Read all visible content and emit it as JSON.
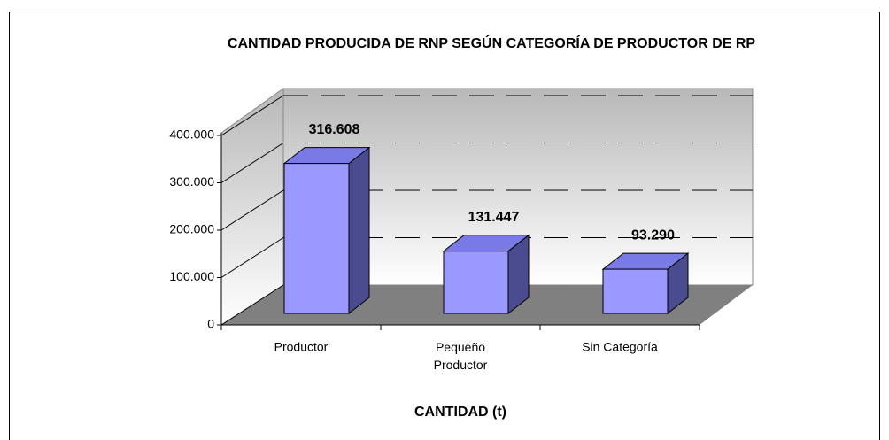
{
  "chart_data": {
    "type": "bar",
    "title": "CANTIDAD PRODUCIDA DE RNP SEGÚN CATEGORÍA DE PRODUCTOR DE RP",
    "x_label": "CANTIDAD (t)",
    "categories": [
      "Productor",
      "Pequeño Productor",
      "Sin Categoría"
    ],
    "values": [
      316608,
      131447,
      93290
    ],
    "value_labels": [
      "316.608",
      "131.447",
      "93.290"
    ],
    "color": "#9999ff",
    "ylim": [
      0,
      400000
    ],
    "yticks": [
      0,
      {
        "value": 100000,
        "label": "100.000"
      },
      {
        "value": 200000,
        "label": "200.000"
      },
      {
        "value": 300000,
        "label": "300.000"
      },
      {
        "value": 400000,
        "label": "400.000"
      }
    ],
    "grid": true
  }
}
